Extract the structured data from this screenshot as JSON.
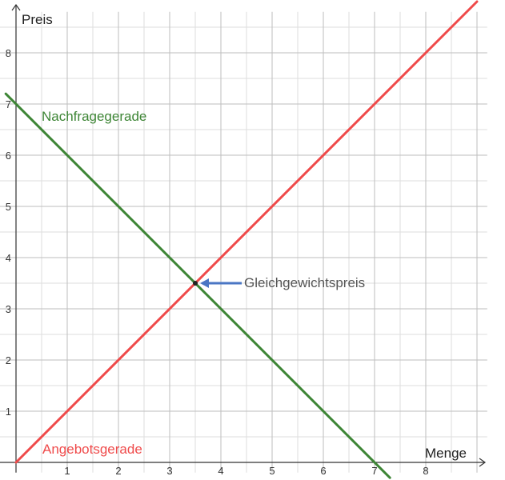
{
  "chart_data": {
    "type": "line",
    "xlabel": "Menge",
    "ylabel": "Preis",
    "xlim": [
      0,
      9.2
    ],
    "ylim": [
      -0.2,
      8.8
    ],
    "x_ticks": [
      1,
      2,
      3,
      4,
      5,
      6,
      7,
      8
    ],
    "y_ticks": [
      1,
      2,
      3,
      4,
      5,
      6,
      7,
      8
    ],
    "grid": true,
    "grid_minor_step": 0.5,
    "colors": {
      "grid_major": "#bdbdbd",
      "grid_minor": "#dedede",
      "axis": "#333333",
      "arrow": "#4a76c4"
    },
    "series": [
      {
        "name": "Angebotsgerade",
        "color": "#ef4a4a",
        "x": [
          0,
          9.0
        ],
        "y": [
          0,
          9.0
        ]
      },
      {
        "name": "Nachfragegerade",
        "color": "#3d8535",
        "x": [
          -0.2,
          7.3
        ],
        "y": [
          7.2,
          -0.3
        ]
      }
    ],
    "equilibrium": {
      "x": 3.5,
      "y": 3.5
    },
    "annotation": {
      "text": "Gleichgewichtspreis",
      "point": [
        3.5,
        3.5
      ]
    }
  }
}
